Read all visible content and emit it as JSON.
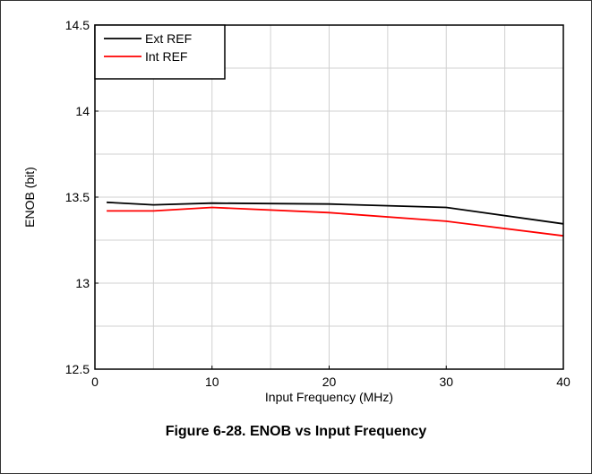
{
  "caption": "Figure 6-28. ENOB vs Input Frequency",
  "chart_data": {
    "type": "line",
    "title": "",
    "xlabel": "Input Frequency (MHz)",
    "ylabel": "ENOB (bit)",
    "xlim": [
      0,
      40
    ],
    "ylim": [
      12.5,
      14.5
    ],
    "x_ticks": [
      0,
      10,
      20,
      30,
      40
    ],
    "x_tick_labels": [
      "0",
      "10",
      "20",
      "30",
      "40"
    ],
    "y_ticks": [
      12.5,
      13,
      13.5,
      14,
      14.5
    ],
    "y_tick_labels": [
      "12.5",
      "13",
      "13.5",
      "14",
      "14.5"
    ],
    "x_minor_step": 5,
    "y_minor_step": 0.25,
    "grid": true,
    "legend_position": "top-left",
    "series": [
      {
        "name": "Ext REF",
        "color": "#000000",
        "x": [
          1,
          5,
          10,
          20,
          30,
          40
        ],
        "y": [
          13.47,
          13.455,
          13.465,
          13.46,
          13.44,
          13.345
        ]
      },
      {
        "name": "Int REF",
        "color": "#ff0000",
        "x": [
          1,
          5,
          10,
          20,
          30,
          40
        ],
        "y": [
          13.42,
          13.42,
          13.44,
          13.41,
          13.36,
          13.275
        ]
      }
    ]
  }
}
